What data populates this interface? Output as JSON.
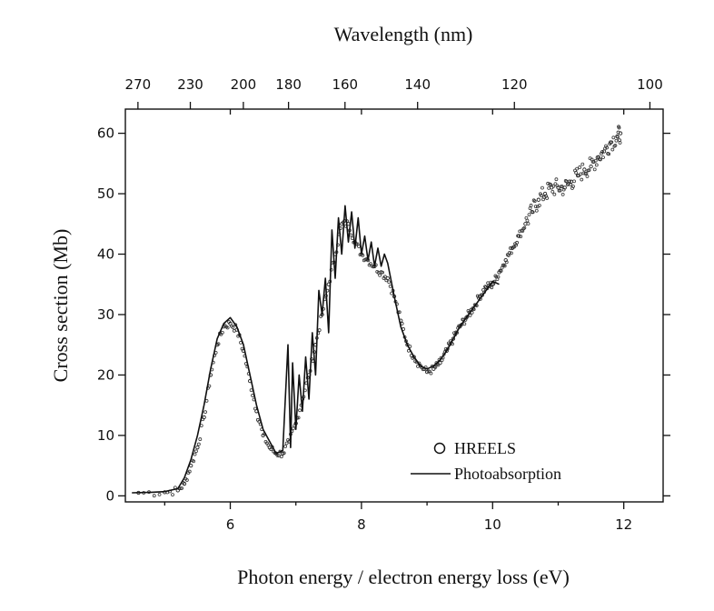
{
  "chart_data": {
    "type": "line",
    "xlabel": "Photon energy / electron energy loss (eV)",
    "ylabel": "Cross section (Mb)",
    "x2label": "Wavelength (nm)",
    "xlim": [
      4.4,
      12.6
    ],
    "ylim": [
      -1,
      64
    ],
    "xticks": [
      6,
      8,
      10,
      12
    ],
    "yticks": [
      0,
      10,
      20,
      30,
      40,
      50,
      60
    ],
    "x2ticks": [
      270,
      230,
      200,
      180,
      160,
      140,
      120,
      100
    ],
    "legend": {
      "position": "bottom-right",
      "entries": [
        {
          "label": "HREELS",
          "marker": "circle"
        },
        {
          "label": "Photoabsorption",
          "marker": "line"
        }
      ]
    },
    "series": [
      {
        "name": "HREELS",
        "style": "scatter",
        "x": [
          4.6,
          5.0,
          5.2,
          5.3,
          5.4,
          5.5,
          5.6,
          5.7,
          5.8,
          5.9,
          6.0,
          6.1,
          6.2,
          6.3,
          6.4,
          6.5,
          6.6,
          6.7,
          6.8,
          6.9,
          7.0,
          7.1,
          7.2,
          7.3,
          7.4,
          7.5,
          7.6,
          7.7,
          7.8,
          7.9,
          8.0,
          8.1,
          8.2,
          8.3,
          8.4,
          8.5,
          8.6,
          8.7,
          8.8,
          8.9,
          9.0,
          9.1,
          9.2,
          9.3,
          9.4,
          9.5,
          9.6,
          9.7,
          9.8,
          9.9,
          10.0,
          10.1,
          10.2,
          10.3,
          10.4,
          10.5,
          10.6,
          10.7,
          10.8,
          10.9,
          11.0,
          11.1,
          11.2,
          11.3,
          11.4,
          11.5,
          11.6,
          11.7,
          11.8,
          11.9,
          11.95
        ],
        "y": [
          0.5,
          0.6,
          0.9,
          2.0,
          5.0,
          8.0,
          13.0,
          20.0,
          25.0,
          28.0,
          28.5,
          27.5,
          24.0,
          19.0,
          14.0,
          10.0,
          8.0,
          7.0,
          7.0,
          9.0,
          12.0,
          16.0,
          20.0,
          25.0,
          30.0,
          35.0,
          40.0,
          45.0,
          45.0,
          42.0,
          40.0,
          39.0,
          38.0,
          37.0,
          36.0,
          33.0,
          29.0,
          25.0,
          23.0,
          21.5,
          20.5,
          21.0,
          22.0,
          24.0,
          26.0,
          28.0,
          29.5,
          31.0,
          33.0,
          34.5,
          35.0,
          37.0,
          39.0,
          41.0,
          43.0,
          45.0,
          47.0,
          49.0,
          50.0,
          51.0,
          51.0,
          51.0,
          52.0,
          53.0,
          54.0,
          54.5,
          56.0,
          57.0,
          58.5,
          59.5,
          60.0
        ]
      },
      {
        "name": "Photoabsorption",
        "style": "line",
        "x": [
          4.5,
          4.8,
          5.0,
          5.2,
          5.3,
          5.4,
          5.5,
          5.6,
          5.7,
          5.8,
          5.9,
          6.0,
          6.1,
          6.2,
          6.3,
          6.4,
          6.5,
          6.6,
          6.7,
          6.8,
          6.88,
          6.92,
          6.95,
          7.0,
          7.05,
          7.1,
          7.15,
          7.2,
          7.25,
          7.3,
          7.35,
          7.4,
          7.45,
          7.5,
          7.55,
          7.6,
          7.65,
          7.7,
          7.75,
          7.8,
          7.85,
          7.9,
          7.95,
          8.0,
          8.05,
          8.1,
          8.15,
          8.2,
          8.25,
          8.3,
          8.35,
          8.4,
          8.5,
          8.6,
          8.7,
          8.8,
          8.9,
          9.0,
          9.1,
          9.2,
          9.3,
          9.4,
          9.5,
          9.6,
          9.7,
          9.8,
          9.9,
          10.0,
          10.1
        ],
        "y": [
          0.5,
          0.6,
          0.7,
          1.2,
          3.0,
          6.0,
          10.0,
          15.0,
          21.0,
          26.0,
          28.5,
          29.5,
          28.0,
          25.0,
          20.0,
          15.0,
          11.0,
          9.0,
          7.0,
          7.5,
          25.0,
          8.0,
          22.0,
          11.0,
          20.0,
          14.0,
          23.0,
          16.0,
          27.0,
          20.0,
          34.0,
          30.0,
          36.0,
          27.0,
          44.0,
          36.0,
          46.0,
          40.0,
          48.0,
          42.0,
          47.0,
          41.0,
          46.0,
          40.0,
          43.0,
          39.0,
          42.0,
          38.0,
          41.0,
          38.0,
          40.0,
          38.5,
          33.0,
          28.0,
          25.0,
          23.0,
          21.5,
          21.0,
          21.5,
          22.5,
          24.0,
          26.0,
          28.0,
          29.5,
          31.0,
          32.5,
          34.0,
          35.5,
          35.0
        ]
      }
    ]
  }
}
